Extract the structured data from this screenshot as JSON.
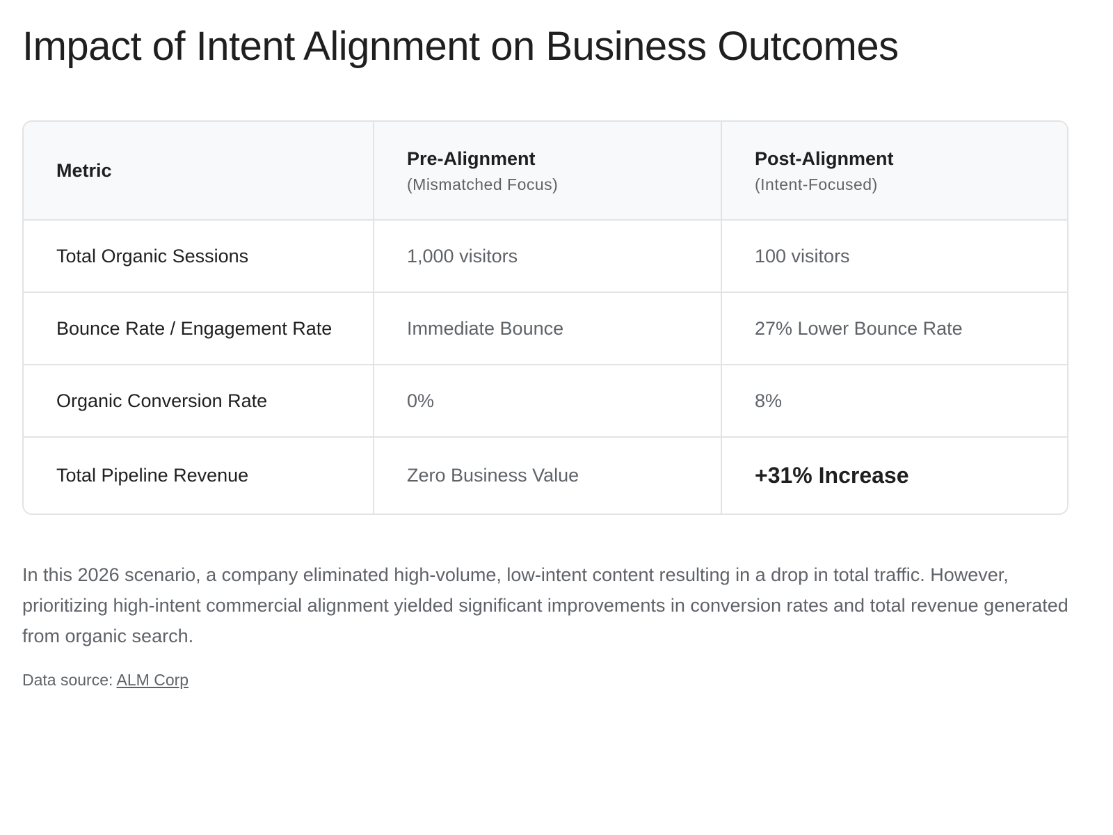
{
  "title": "Impact of Intent Alignment on Business Outcomes",
  "table": {
    "headers": {
      "metric": "Metric",
      "pre": {
        "label": "Pre-Alignment",
        "sub": "(Mismatched Focus)"
      },
      "post": {
        "label": "Post-Alignment",
        "sub": "(Intent-Focused)"
      }
    },
    "rows": [
      {
        "metric": "Total Organic Sessions",
        "pre": "1,000 visitors",
        "post": "100 visitors"
      },
      {
        "metric": "Bounce Rate / Engagement Rate",
        "pre": "Immediate Bounce",
        "post": "27% Lower Bounce Rate"
      },
      {
        "metric": "Organic Conversion Rate",
        "pre": "0%",
        "post": "8%"
      },
      {
        "metric": "Total Pipeline Revenue",
        "pre": "Zero Business Value",
        "post": "+31% Increase"
      }
    ]
  },
  "description": "In this 2026 scenario, a company eliminated high-volume, low-intent content resulting in a drop in total traffic. However, prioritizing high-intent commercial alignment yielded significant improvements in conversion rates and total revenue generated from organic search.",
  "source": {
    "prefix": "Data source: ",
    "link_text": "ALM Corp"
  }
}
